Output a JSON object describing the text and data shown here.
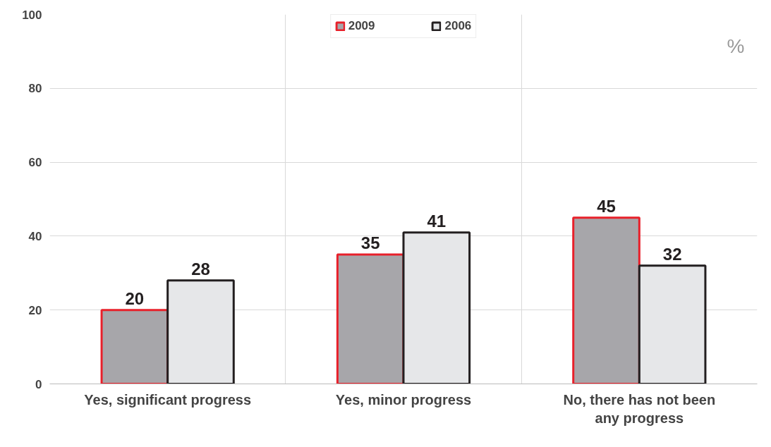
{
  "chart_data": {
    "type": "bar",
    "categories": [
      "Yes, significant progress",
      "Yes, minor progress",
      "No, there has not been any progress"
    ],
    "series": [
      {
        "name": "2009",
        "color": "#a7a6aa",
        "values": [
          20,
          35,
          45
        ]
      },
      {
        "name": "2006",
        "color": "#e6e7e9",
        "values": [
          28,
          41,
          32
        ]
      }
    ],
    "ylim": [
      0,
      100
    ],
    "yticks": [
      0,
      20,
      40,
      60,
      80,
      100
    ],
    "grid": true,
    "legend": "top",
    "data_labels": true,
    "annotations": [
      "%"
    ]
  }
}
